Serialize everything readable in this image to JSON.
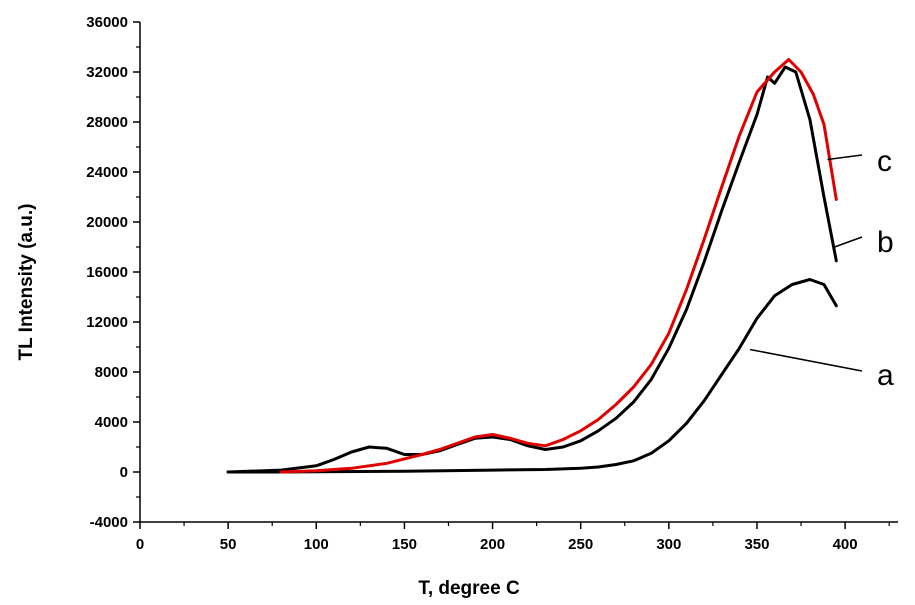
{
  "chart_data": {
    "type": "line",
    "title": "",
    "xlabel": "T, degree C",
    "ylabel": "TL Intensity (a.u.)",
    "xlim": [
      0,
      430
    ],
    "ylim": [
      -4000,
      36000
    ],
    "xticks": [
      0,
      50,
      100,
      150,
      200,
      250,
      300,
      350,
      400
    ],
    "yticks": [
      -4000,
      0,
      4000,
      8000,
      12000,
      16000,
      20000,
      24000,
      28000,
      32000,
      36000
    ],
    "ytick_labels": [
      "-4000",
      "0",
      "4000",
      "8000",
      "12000",
      "16000",
      "20000",
      "24000",
      "28000",
      "32000",
      "36000"
    ],
    "grid": false,
    "series": [
      {
        "name": "a",
        "color": "#000000",
        "x": [
          50,
          80,
          100,
          150,
          200,
          230,
          250,
          260,
          270,
          280,
          290,
          300,
          310,
          320,
          330,
          340,
          350,
          360,
          370,
          380,
          388,
          395
        ],
        "y": [
          0,
          0,
          20,
          60,
          150,
          200,
          300,
          400,
          600,
          900,
          1500,
          2500,
          3900,
          5700,
          7800,
          9900,
          12300,
          14100,
          15000,
          15400,
          15000,
          13300
        ]
      },
      {
        "name": "b",
        "color": "#000000",
        "x": [
          50,
          80,
          100,
          110,
          120,
          130,
          140,
          150,
          160,
          170,
          180,
          190,
          200,
          210,
          220,
          230,
          240,
          250,
          260,
          270,
          280,
          290,
          300,
          310,
          320,
          330,
          340,
          350,
          356,
          360,
          366,
          372,
          380,
          388,
          395
        ],
        "y": [
          0,
          150,
          500,
          1000,
          1600,
          2000,
          1900,
          1400,
          1400,
          1700,
          2200,
          2700,
          2800,
          2600,
          2100,
          1800,
          2000,
          2500,
          3300,
          4300,
          5600,
          7400,
          9900,
          13000,
          16800,
          20900,
          24800,
          28600,
          31600,
          31100,
          32400,
          32000,
          28200,
          22000,
          16900
        ]
      },
      {
        "name": "c",
        "color": "#e00000",
        "x": [
          80,
          100,
          120,
          140,
          160,
          170,
          180,
          190,
          200,
          210,
          220,
          230,
          240,
          250,
          260,
          270,
          280,
          290,
          300,
          310,
          320,
          330,
          340,
          350,
          360,
          368,
          375,
          382,
          388,
          395
        ],
        "y": [
          0,
          100,
          300,
          700,
          1400,
          1800,
          2300,
          2800,
          3000,
          2700,
          2300,
          2100,
          2600,
          3300,
          4200,
          5400,
          6800,
          8600,
          11100,
          14600,
          18600,
          22800,
          26900,
          30400,
          32000,
          33000,
          32000,
          30200,
          27800,
          21800
        ]
      }
    ],
    "annotations": [
      {
        "text": "c",
        "series": "c"
      },
      {
        "text": "b",
        "series": "b"
      },
      {
        "text": "a",
        "series": "a"
      }
    ]
  }
}
